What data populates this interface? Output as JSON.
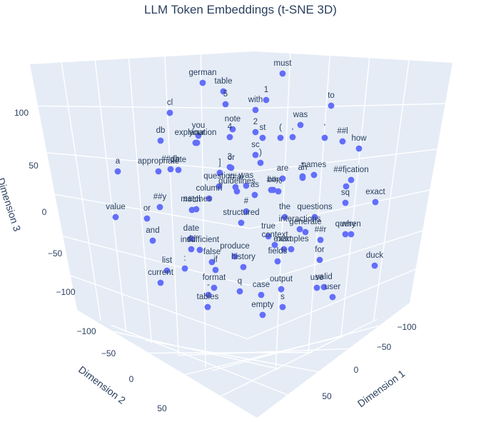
{
  "chart_data": {
    "type": "scatter",
    "title": "LLM Token Embeddings (t-SNE 3D)",
    "axes": {
      "x": {
        "label": "Dimension 1",
        "ticks": [
          "−100",
          "−50",
          "0",
          "50"
        ]
      },
      "y": {
        "label": "Dimension 2",
        "ticks": [
          "−100",
          "−50",
          "0",
          "50"
        ]
      },
      "z": {
        "label": "Dimension 3",
        "ticks": [
          "100",
          "50",
          "0",
          "−50",
          "−100"
        ]
      }
    },
    "grid": true,
    "legend": "none",
    "marker_color": "#636efa",
    "pane_color": "#e5ecf6",
    "points": [
      {
        "label": "german",
        "u": 284,
        "v": 116
      },
      {
        "label": "must",
        "u": 396,
        "v": 103
      },
      {
        "label": "table",
        "u": 313,
        "v": 128
      },
      {
        "label": "5",
        "u": 316,
        "v": 146
      },
      {
        "label": "1",
        "u": 373,
        "v": 140
      },
      {
        "label": "to",
        "u": 464,
        "v": 148
      },
      {
        "label": "cl",
        "u": 238,
        "v": 158
      },
      {
        "label": "with",
        "u": 358,
        "v": 154
      },
      {
        "label": "was",
        "u": 421,
        "v": 175
      },
      {
        "label": "note",
        "u": 326,
        "v": 181
      },
      {
        "label": "you",
        "u": 278,
        "v": 190
      },
      {
        "label": "2",
        "u": 358,
        "v": 185
      },
      {
        "label": "explanation",
        "u": 274,
        "v": 200
      },
      {
        "label": "4",
        "u": 322,
        "v": 192
      },
      {
        "label": "(",
        "u": 393,
        "v": 193
      },
      {
        "label": ",",
        "u": 410,
        "v": 192
      },
      {
        "label": "'",
        "u": 455,
        "v": 193
      },
      {
        "label": "##l",
        "u": 480,
        "v": 198
      },
      {
        "label": "db",
        "u": 225,
        "v": 197
      },
      {
        "label": "your",
        "u": 276,
        "v": 200
      },
      {
        "label": "st",
        "u": 368,
        "v": 193
      },
      {
        "label": "how",
        "u": 503,
        "v": 208
      },
      {
        "label": "sc",
        "u": 358,
        "v": 217
      },
      {
        "label": ")",
        "u": 365,
        "v": 228
      },
      {
        "label": "a",
        "u": 165,
        "v": 240
      },
      {
        "label": "appropriate",
        "u": 222,
        "v": 240
      },
      {
        "label": "##db",
        "u": 239,
        "v": 237
      },
      {
        "label": "date",
        "u": 250,
        "v": 238
      },
      {
        "label": "]",
        "u": 308,
        "v": 242
      },
      {
        "label": "3",
        "u": 322,
        "v": 234
      },
      {
        "label": "or",
        "u": 324,
        "v": 235
      },
      {
        "label": "are",
        "u": 396,
        "v": 250
      },
      {
        "label": "\"",
        "u": 424,
        "v": 247
      },
      {
        "label": "an",
        "u": 424,
        "v": 249
      },
      {
        "label": "names",
        "u": 440,
        "v": 245
      },
      {
        "label": "##fication",
        "u": 492,
        "v": 252
      },
      {
        "label": "question",
        "u": 307,
        "v": 261
      },
      {
        "label": "##ai",
        "u": 330,
        "v": 262
      },
      {
        "label": "bor",
        "u": 383,
        "v": 266
      },
      {
        "label": "##",
        "u": 380,
        "v": 266
      },
      {
        "label": "was",
        "u": 345,
        "v": 260
      },
      {
        "label": "column",
        "u": 293,
        "v": 278
      },
      {
        "label": "as",
        "u": 357,
        "v": 273
      },
      {
        "label": "%",
        "u": 390,
        "v": 268
      },
      {
        "label": "`",
        "u": 485,
        "v": 261
      },
      {
        "label": "sq",
        "u": 484,
        "v": 284
      },
      {
        "label": "exact",
        "u": 526,
        "v": 283
      },
      {
        "label": "##y",
        "u": 224,
        "v": 290
      },
      {
        "label": "##ch",
        "u": 269,
        "v": 294
      },
      {
        "label": "matches",
        "u": 275,
        "v": 293
      },
      {
        "label": "guidelines",
        "u": 332,
        "v": 268
      },
      {
        "label": "#",
        "u": 345,
        "v": 296
      },
      {
        "label": "the",
        "u": 399,
        "v": 304
      },
      {
        "label": "questions",
        "u": 441,
        "v": 304
      },
      {
        "label": "value",
        "u": 162,
        "v": 304
      },
      {
        "label": "or",
        "u": 206,
        "v": 306
      },
      {
        "label": "structured",
        "u": 338,
        "v": 312
      },
      {
        "label": "generate",
        "u": 428,
        "v": 325
      },
      {
        "label": "interactions",
        "u": 420,
        "v": 321
      },
      {
        "label": "##r",
        "u": 449,
        "v": 336
      },
      {
        "label": "query",
        "u": 484,
        "v": 328
      },
      {
        "label": "when",
        "u": 492,
        "v": 328
      },
      {
        "label": "and",
        "u": 214,
        "v": 337
      },
      {
        "label": "date",
        "u": 268,
        "v": 334
      },
      {
        "label": "insufficient",
        "u": 280,
        "v": 350
      },
      {
        "label": "true",
        "u": 376,
        "v": 331
      },
      {
        "label": "context",
        "u": 385,
        "v": 343
      },
      {
        "label": "examples",
        "u": 408,
        "v": 349
      },
      {
        "label": "next",
        "u": 398,
        "v": 349
      },
      {
        "label": "dd",
        "u": 268,
        "v": 349
      },
      {
        "label": "produce",
        "u": 329,
        "v": 359
      },
      {
        "label": "false",
        "u": 297,
        "v": 367
      },
      {
        "label": "history",
        "u": 341,
        "v": 374
      },
      {
        "label": "fields",
        "u": 389,
        "v": 366
      },
      {
        "label": "for",
        "u": 448,
        "v": 364
      },
      {
        "label": "duck",
        "u": 525,
        "v": 372
      },
      {
        "label": "list",
        "u": 234,
        "v": 379
      },
      {
        "label": ":",
        "u": 259,
        "v": 376
      },
      {
        "label": "if",
        "u": 302,
        "v": 378
      },
      {
        "label": "current",
        "u": 225,
        "v": 396
      },
      {
        "label": "format",
        "u": 300,
        "v": 403
      },
      {
        "label": "q",
        "u": 336,
        "v": 408
      },
      {
        "label": "output",
        "u": 394,
        "v": 405
      },
      {
        "label": "use",
        "u": 444,
        "v": 403
      },
      {
        "label": "valid",
        "u": 454,
        "v": 402
      },
      {
        "label": "-",
        "u": 292,
        "v": 413
      },
      {
        "label": "case",
        "u": 366,
        "v": 413
      },
      {
        "label": "user",
        "u": 466,
        "v": 416
      },
      {
        "label": "tables",
        "u": 291,
        "v": 430
      },
      {
        "label": "s",
        "u": 396,
        "v": 430
      },
      {
        "label": "empty",
        "u": 368,
        "v": 441
      }
    ]
  }
}
